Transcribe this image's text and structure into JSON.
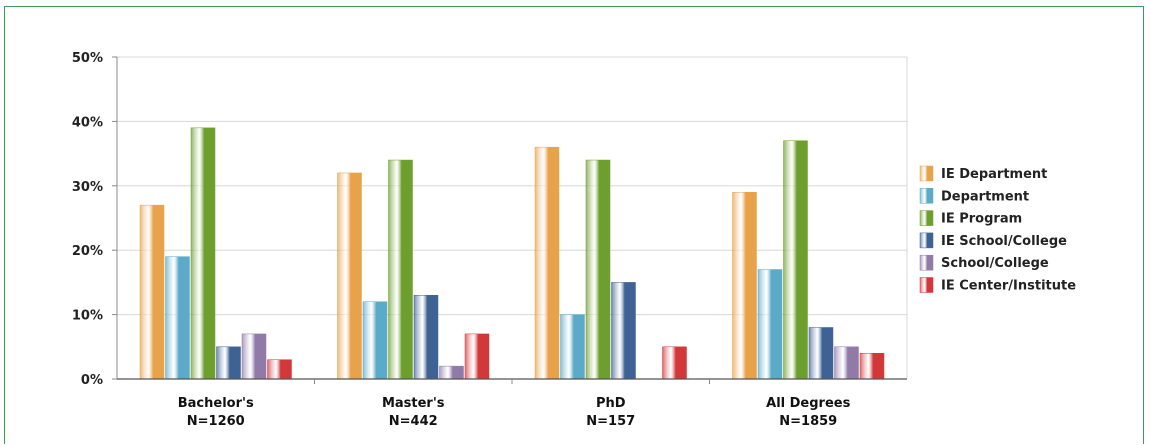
{
  "chart_data": {
    "type": "bar",
    "categories": [
      {
        "line1": "Bachelor's",
        "line2": "N=1260"
      },
      {
        "line1": "Master's",
        "line2": "N=442"
      },
      {
        "line1": "PhD",
        "line2": "N=157"
      },
      {
        "line1": "All Degrees",
        "line2": "N=1859"
      }
    ],
    "yticks": [
      "0%",
      "10%",
      "20%",
      "30%",
      "40%",
      "50%"
    ],
    "ylim": [
      0,
      50
    ],
    "grid": true,
    "legend_position": "right",
    "series": [
      {
        "name": "IE Department",
        "color": "#e8a24a",
        "values": [
          27,
          32,
          36,
          29
        ]
      },
      {
        "name": "Department",
        "color": "#5aaac8",
        "values": [
          19,
          12,
          10,
          17
        ]
      },
      {
        "name": "IE Program",
        "color": "#6e9e2e",
        "values": [
          39,
          34,
          34,
          37
        ]
      },
      {
        "name": "IE School/College",
        "color": "#3f6294",
        "values": [
          5,
          13,
          15,
          8
        ]
      },
      {
        "name": "School/College",
        "color": "#8f7aa8",
        "values": [
          7,
          2,
          0,
          5
        ]
      },
      {
        "name": "IE Center/Institute",
        "color": "#d2383a",
        "values": [
          3,
          7,
          5,
          4
        ]
      }
    ]
  }
}
